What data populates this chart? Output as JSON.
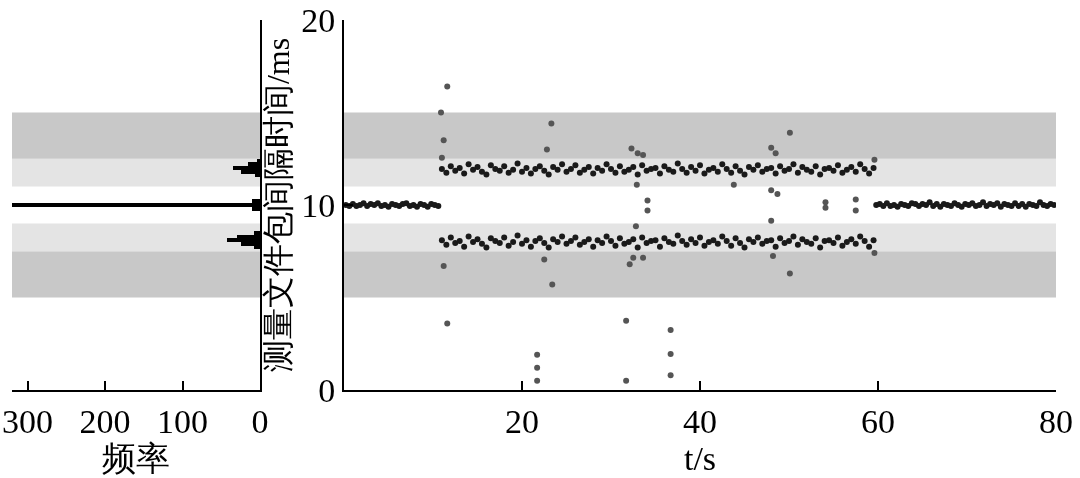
{
  "chart_data": [
    {
      "type": "histogram",
      "orientation": "horizontal",
      "xlabel": "频率",
      "xlim": [
        320,
        0
      ],
      "xticks": [
        300,
        200,
        100,
        0
      ],
      "ylim": [
        0,
        20
      ],
      "tick_labels": "x",
      "color": "#000000",
      "bins": [
        7.6,
        7.8,
        8.0,
        8.2,
        8.4,
        8.6,
        9.7,
        9.9,
        10.1,
        10.3,
        11.5,
        11.7,
        11.9,
        12.1,
        12.3,
        12.5
      ],
      "values": [
        8,
        25,
        42,
        30,
        8,
        0,
        10,
        320,
        10,
        0,
        6,
        25,
        35,
        16,
        4
      ],
      "bands": [
        {
          "axis": "y",
          "from": 5,
          "to": 7.5,
          "color": "#c8c8c8"
        },
        {
          "axis": "y",
          "from": 7.5,
          "to": 9,
          "color": "#e4e4e4"
        },
        {
          "axis": "y",
          "from": 11,
          "to": 12.5,
          "color": "#e4e4e4"
        },
        {
          "axis": "y",
          "from": 12.5,
          "to": 15,
          "color": "#c8c8c8"
        }
      ]
    },
    {
      "type": "scatter",
      "xlabel": "t/s",
      "ylabel": "测量文件包间隔时间/ms",
      "xlim": [
        0,
        80
      ],
      "xticks": [
        20,
        40,
        60,
        80
      ],
      "ylim": [
        0,
        20
      ],
      "yticks": [
        0,
        10,
        20
      ],
      "marker": "circle",
      "bands": [
        {
          "axis": "y",
          "from": 5,
          "to": 7.5,
          "color": "#c8c8c8"
        },
        {
          "axis": "y",
          "from": 7.5,
          "to": 9,
          "color": "#e4e4e4"
        },
        {
          "axis": "y",
          "from": 11,
          "to": 12.5,
          "color": "#e4e4e4"
        },
        {
          "axis": "y",
          "from": 12.5,
          "to": 15,
          "color": "#c8c8c8"
        }
      ],
      "series": [
        {
          "color": "#1a1a1a",
          "x": [
            0.2,
            0.6,
            1.0,
            1.4,
            1.8,
            2.2,
            2.6,
            3.0,
            3.4,
            3.8,
            4.2,
            4.6,
            5.0,
            5.4,
            5.8,
            6.2,
            6.6,
            7.0,
            7.4,
            7.8,
            8.2,
            8.6,
            9.0,
            9.4,
            9.8,
            10.2,
            10.6
          ],
          "values": [
            10.0,
            9.95,
            10.05,
            9.95,
            10.0,
            10.1,
            9.95,
            10.05,
            10.0,
            10.1,
            9.95,
            10.0,
            9.9,
            10.05,
            10.0,
            9.95,
            10.05,
            10.1,
            9.95,
            10.0,
            9.9,
            10.05,
            10.0,
            9.9,
            10.05,
            10.0,
            9.95
          ]
        },
        {
          "color": "#1a1a1a",
          "x": [
            11,
            11.5,
            12,
            12.5,
            13,
            13.5,
            14,
            14.5,
            15,
            15.5,
            16,
            16.5,
            17,
            17.5,
            18,
            18.5,
            19,
            19.5,
            20,
            20.5,
            21,
            21.5,
            22,
            22.5,
            23,
            23.5,
            24,
            24.5,
            25,
            25.5,
            26,
            26.5,
            27,
            27.5,
            28,
            28.5,
            29,
            29.5,
            30,
            30.5,
            31,
            31.5,
            32,
            32.5,
            33,
            33.5,
            34,
            34.5,
            35,
            35.5,
            36,
            36.5,
            37,
            37.5,
            38,
            38.5,
            39,
            39.5,
            40,
            40.5,
            41,
            41.5,
            42,
            42.5,
            43,
            43.5,
            44,
            44.5,
            45,
            45.5,
            46,
            46.5,
            47,
            47.5,
            48,
            48.5,
            49,
            49.5,
            50,
            50.5,
            51,
            51.5,
            52,
            52.5,
            53,
            53.5,
            54,
            54.5,
            55,
            55.5,
            56,
            56.5,
            57,
            57.5,
            58,
            58.5,
            59,
            59.5
          ],
          "values": [
            11.95,
            11.75,
            12.1,
            11.85,
            12.0,
            11.7,
            12.2,
            11.9,
            12.05,
            11.8,
            11.65,
            12.15,
            11.95,
            11.85,
            12.1,
            11.75,
            11.9,
            12.25,
            11.8,
            12.0,
            11.7,
            11.95,
            12.1,
            11.85,
            11.65,
            12.05,
            11.9,
            12.2,
            11.8,
            11.95,
            12.15,
            11.75,
            11.9,
            12.05,
            11.7,
            12.0,
            11.85,
            12.2,
            11.95,
            11.75,
            12.1,
            11.8,
            11.9,
            12.05,
            11.65,
            12.15,
            11.85,
            11.95,
            12.0,
            11.7,
            12.1,
            11.9,
            11.8,
            12.25,
            11.95,
            11.75,
            12.05,
            11.85,
            12.15,
            11.7,
            11.9,
            12.0,
            11.8,
            12.2,
            11.95,
            11.75,
            12.1,
            11.85,
            11.65,
            12.05,
            11.9,
            12.15,
            11.8,
            11.95,
            12.0,
            11.7,
            12.1,
            11.85,
            11.95,
            12.2,
            11.75,
            12.05,
            11.9,
            11.8,
            12.1,
            11.65,
            11.95,
            12.0,
            11.85,
            12.15,
            11.75,
            11.9,
            12.05,
            11.8,
            12.2,
            11.95,
            11.7,
            12.0
          ]
        },
        {
          "color": "#1a1a1a",
          "x": [
            11,
            11.5,
            12,
            12.5,
            13,
            13.5,
            14,
            14.5,
            15,
            15.5,
            16,
            16.5,
            17,
            17.5,
            18,
            18.5,
            19,
            19.5,
            20,
            20.5,
            21,
            21.5,
            22,
            22.5,
            23,
            23.5,
            24,
            24.5,
            25,
            25.5,
            26,
            26.5,
            27,
            27.5,
            28,
            28.5,
            29,
            29.5,
            30,
            30.5,
            31,
            31.5,
            32,
            32.5,
            33,
            33.5,
            34,
            34.5,
            35,
            35.5,
            36,
            36.5,
            37,
            37.5,
            38,
            38.5,
            39,
            39.5,
            40,
            40.5,
            41,
            41.5,
            42,
            42.5,
            43,
            43.5,
            44,
            44.5,
            45,
            45.5,
            46,
            46.5,
            47,
            47.5,
            48,
            48.5,
            49,
            49.5,
            50,
            50.5,
            51,
            51.5,
            52,
            52.5,
            53,
            53.5,
            54,
            54.5,
            55,
            55.5,
            56,
            56.5,
            57,
            57.5,
            58,
            58.5,
            59,
            59.5
          ],
          "values": [
            8.1,
            7.85,
            8.25,
            7.95,
            8.05,
            7.75,
            8.3,
            8.0,
            8.15,
            7.9,
            7.7,
            8.2,
            8.05,
            7.95,
            8.25,
            7.8,
            8.0,
            8.35,
            7.9,
            8.1,
            7.75,
            8.05,
            8.2,
            7.95,
            7.7,
            8.15,
            8.0,
            8.3,
            7.9,
            8.05,
            8.25,
            7.85,
            8.0,
            8.15,
            7.75,
            8.1,
            7.95,
            8.3,
            8.05,
            7.8,
            8.2,
            7.9,
            8.0,
            8.15,
            7.7,
            8.25,
            7.95,
            8.05,
            8.1,
            7.75,
            8.2,
            8.0,
            7.9,
            8.35,
            8.05,
            7.85,
            8.15,
            7.95,
            8.25,
            7.8,
            8.0,
            8.1,
            7.9,
            8.3,
            8.05,
            7.8,
            8.2,
            7.95,
            7.7,
            8.15,
            8.0,
            8.25,
            7.9,
            8.05,
            8.1,
            7.75,
            8.2,
            7.95,
            8.05,
            8.3,
            7.85,
            8.15,
            8.0,
            7.9,
            8.2,
            7.7,
            8.05,
            8.1,
            7.95,
            8.25,
            7.8,
            8.0,
            8.15,
            7.9,
            8.3,
            8.05,
            7.75,
            8.1
          ]
        },
        {
          "color": "#1a1a1a",
          "x": [
            59.8,
            60.2,
            60.6,
            61,
            61.4,
            61.8,
            62.2,
            62.6,
            63,
            63.4,
            63.8,
            64.2,
            64.6,
            65,
            65.4,
            65.8,
            66.2,
            66.6,
            67,
            67.4,
            67.8,
            68.2,
            68.6,
            69,
            69.4,
            69.8,
            70.2,
            70.6,
            71,
            71.4,
            71.8,
            72.2,
            72.6,
            73,
            73.4,
            73.8,
            74.2,
            74.6,
            75,
            75.4,
            75.8,
            76.2,
            76.6,
            77,
            77.4,
            77.8,
            78.2,
            78.6,
            79,
            79.4,
            79.8
          ],
          "values": [
            10.0,
            10.05,
            9.95,
            10.1,
            9.95,
            10.0,
            9.9,
            10.05,
            10.0,
            9.95,
            10.1,
            10.05,
            9.95,
            10.05,
            10.0,
            10.15,
            9.95,
            10.05,
            9.9,
            10.05,
            10.0,
            9.95,
            10.1,
            10.0,
            9.9,
            10.05,
            10.0,
            10.1,
            9.95,
            10.0,
            10.15,
            9.95,
            10.05,
            10.0,
            10.1,
            9.9,
            10.05,
            10.0,
            9.95,
            10.1,
            9.95,
            10.05,
            9.9,
            10.05,
            10.0,
            9.95,
            10.15,
            10.0,
            9.95,
            10.05,
            10.0
          ]
        },
        {
          "color": "#555555",
          "x": [
            11.6,
            10.9,
            11.2,
            11.0,
            23.3,
            22.8,
            32.3,
            33.0,
            33.6,
            32.9,
            34.1,
            34.1,
            32.8,
            11.2,
            22.5,
            23.4,
            32.1,
            32.5,
            33.6,
            11.6,
            31.7,
            21.7,
            21.7,
            21.7,
            31.7,
            36.7,
            36.7,
            36.7,
            50.1,
            48.0,
            48.5,
            59.6,
            43.8,
            48.0,
            48.7,
            54.1,
            54.1,
            57.5,
            57.5,
            48.0,
            48.2,
            50.1,
            59.6
          ],
          "values": [
            16.4,
            15.0,
            13.5,
            12.55,
            14.4,
            13.0,
            13.05,
            12.8,
            12.7,
            11.1,
            10.25,
            9.7,
            8.85,
            6.7,
            7.05,
            5.7,
            6.8,
            7.15,
            7.15,
            3.6,
            3.75,
            1.9,
            1.2,
            0.5,
            0.5,
            3.25,
            1.95,
            0.8,
            13.9,
            13.1,
            12.8,
            12.45,
            11.1,
            10.8,
            10.6,
            10.15,
            9.85,
            10.3,
            9.7,
            9.15,
            7.25,
            6.3,
            7.4
          ]
        }
      ]
    }
  ]
}
